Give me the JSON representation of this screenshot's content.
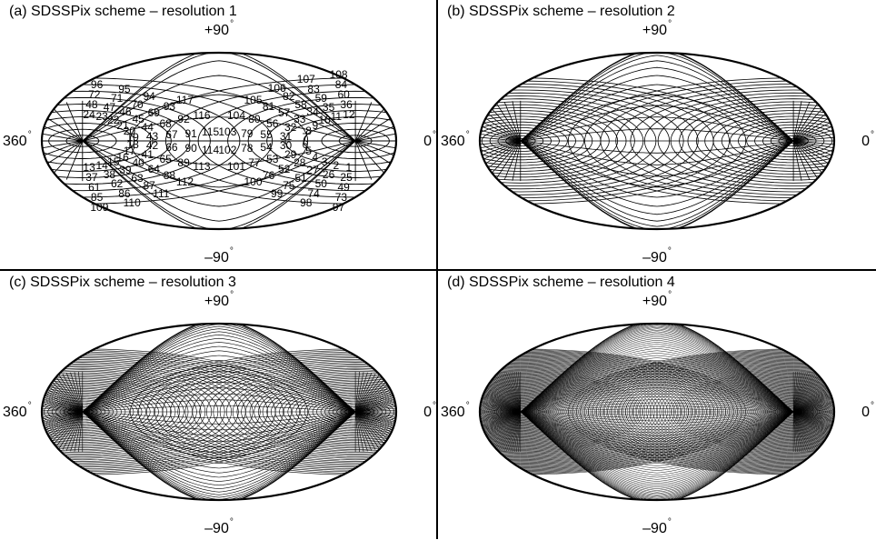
{
  "degree_symbol": "°",
  "panels": [
    {
      "title": "(a) SDSSPix scheme – resolution 1",
      "north_label": "+90",
      "south_label": "–90",
      "left_label": "360",
      "right_label": "0",
      "resolution": 1,
      "pixel_numbers_shown": true,
      "pixel_labels": [
        "1",
        "2",
        "3",
        "4",
        "5",
        "6",
        "7",
        "8",
        "9",
        "10",
        "11",
        "12",
        "13",
        "14",
        "15",
        "16",
        "17",
        "18",
        "19",
        "20",
        "21",
        "22",
        "23",
        "24",
        "25",
        "26",
        "27",
        "28",
        "29",
        "30",
        "31",
        "32",
        "33",
        "34",
        "35",
        "36",
        "37",
        "38",
        "39",
        "40",
        "41",
        "42",
        "43",
        "44",
        "45",
        "46",
        "47",
        "48",
        "49",
        "50",
        "51",
        "52",
        "53",
        "54",
        "55",
        "56",
        "57",
        "58",
        "59",
        "60",
        "61",
        "62",
        "63",
        "64",
        "65",
        "66",
        "67",
        "68",
        "69",
        "70",
        "71",
        "72",
        "73",
        "74",
        "75",
        "76",
        "77",
        "78",
        "79",
        "80",
        "81",
        "82",
        "83",
        "84",
        "85",
        "86",
        "87",
        "88",
        "89",
        "90",
        "91",
        "92",
        "93",
        "94",
        "95",
        "96",
        "97",
        "98",
        "99",
        "100",
        "101",
        "102",
        "103",
        "104",
        "105",
        "106",
        "107",
        "108",
        "109",
        "110",
        "111",
        "112",
        "113",
        "114",
        "115",
        "116",
        "117"
      ]
    },
    {
      "title": "(b) SDSSPix scheme – resolution 2",
      "north_label": "+90",
      "south_label": "–90",
      "left_label": "360",
      "right_label": "0",
      "resolution": 2,
      "pixel_numbers_shown": true,
      "pixel_labels": []
    },
    {
      "title": "(c) SDSSPix scheme – resolution 3",
      "north_label": "+90",
      "south_label": "–90",
      "left_label": "360",
      "right_label": "0",
      "resolution": 3,
      "pixel_numbers_shown": false,
      "pixel_labels": []
    },
    {
      "title": "(d) SDSSPix scheme – resolution 4",
      "north_label": "+90",
      "south_label": "–90",
      "left_label": "360",
      "right_label": "0",
      "resolution": 4,
      "pixel_numbers_shown": false,
      "pixel_labels": []
    }
  ]
}
